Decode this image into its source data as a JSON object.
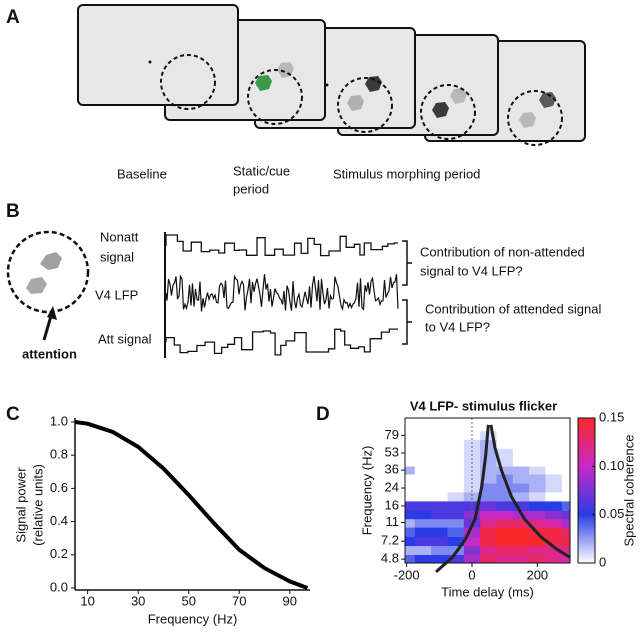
{
  "panel_a": {
    "label": "A",
    "stages": [
      {
        "label": [
          "Baseline"
        ]
      },
      {
        "label": [
          "Static/cue",
          "period"
        ]
      },
      {
        "label": [
          "Stimulus  morphing period"
        ]
      }
    ]
  },
  "panel_b": {
    "label": "B",
    "attention": "attention",
    "signals": [
      [
        "Nonatt",
        "signal"
      ],
      [
        "V4 LFP"
      ],
      [
        "Att signal"
      ]
    ],
    "questions": [
      [
        "Contribution of non-attended",
        "signal to V4 LFP?"
      ],
      [
        "Contribution of attended signal",
        "to V4 LFP?"
      ]
    ]
  },
  "chart_data": [
    {
      "panel_label": "C",
      "type": "line",
      "xlabel": "Frequency (Hz)",
      "ylabel": [
        "Signal power",
        "(relative units)"
      ],
      "x": [
        5,
        10,
        20,
        30,
        40,
        50,
        60,
        70,
        80,
        90,
        97
      ],
      "values": [
        1,
        0.99,
        0.94,
        0.85,
        0.72,
        0.56,
        0.39,
        0.23,
        0.12,
        0.04,
        0
      ],
      "color": "#000000",
      "xlim": [
        5,
        98
      ],
      "ylim": [
        0,
        1
      ],
      "xticks": [
        10,
        30,
        50,
        70,
        90
      ],
      "yticks": [
        {
          "value": 0,
          "label": "0.0"
        },
        0.2,
        0.4,
        0.6,
        0.8,
        {
          "value": 1,
          "label": "1.0"
        }
      ]
    },
    {
      "panel_label": "D",
      "type": "heatmap",
      "title": "V4 LFP- stimulus flicker",
      "xlabel": "Time delay (ms)",
      "ylabel": "Frequency (Hz)",
      "x": [
        -200,
        -150,
        -100,
        -50,
        0,
        50,
        100,
        150,
        200,
        250,
        300
      ],
      "y": [
        4.8,
        5.9,
        7.2,
        8.9,
        11,
        13,
        16,
        20,
        24,
        30,
        36,
        43,
        53,
        65,
        79,
        97
      ],
      "z": [
        [
          0.04,
          0.05,
          0.05,
          0.06,
          0.09,
          0.13,
          0.12,
          0.12,
          0.13,
          0.12,
          0.11
        ],
        [
          0.02,
          0.02,
          0.03,
          0.03,
          0.08,
          0.12,
          0.13,
          0.13,
          0.12,
          0.12,
          0.12
        ],
        [
          0.05,
          0.06,
          0.06,
          0.05,
          0.1,
          0.14,
          0.15,
          0.15,
          0.15,
          0.14,
          0.14
        ],
        [
          0.04,
          0.05,
          0.05,
          0.04,
          0.09,
          0.14,
          0.15,
          0.15,
          0.14,
          0.14,
          0.13
        ],
        [
          0.02,
          0.03,
          0.03,
          0.03,
          0.07,
          0.12,
          0.13,
          0.13,
          0.12,
          0.11,
          0.09
        ],
        [
          0.05,
          0.05,
          0.06,
          0.06,
          0.08,
          0.1,
          0.1,
          0.09,
          0.09,
          0.08,
          0.07
        ],
        [
          0.06,
          0.06,
          0.06,
          0.06,
          0.06,
          0.07,
          0.06,
          0.06,
          0.05,
          0.05,
          0.04
        ],
        [
          0,
          0,
          0,
          0.01,
          0.02,
          0.03,
          0.03,
          0.02,
          0.01,
          0,
          0
        ],
        [
          0,
          0,
          0,
          0,
          0.01,
          0.03,
          0.03,
          0.03,
          0.02,
          0.01,
          0
        ],
        [
          0,
          0,
          0,
          0,
          0.01,
          0.02,
          0.03,
          0.02,
          0.02,
          0.01,
          0
        ],
        [
          0.02,
          0,
          0,
          0,
          0.01,
          0.02,
          0.02,
          0.02,
          0.01,
          0,
          0
        ],
        [
          0,
          0,
          0,
          0,
          0.01,
          0.02,
          0.01,
          0,
          0,
          0,
          0
        ],
        [
          0,
          0,
          0,
          0,
          0.01,
          0.02,
          0.01,
          0,
          0,
          0,
          0
        ],
        [
          0,
          0,
          0,
          0,
          0.01,
          0.02,
          0,
          0,
          0,
          0,
          0
        ],
        [
          0,
          0,
          0,
          0,
          0,
          0.01,
          0,
          0,
          0,
          0,
          0
        ],
        [
          0,
          0,
          0,
          0,
          0,
          0,
          0,
          0,
          0,
          0,
          0
        ]
      ],
      "xlim": [
        -205,
        300
      ],
      "ylim": [
        4.4,
        117
      ],
      "yscale": "log",
      "xticks": [
        -200,
        0,
        200
      ],
      "yticks": [
        4.8,
        7.2,
        11,
        16,
        24,
        36,
        53,
        79
      ],
      "zero_line": true,
      "curves": [
        {
          "x": [
            -110,
            -60,
            -20,
            10,
            30,
            42,
            50
          ],
          "y": [
            3.6,
            5,
            7.5,
            12,
            25,
            50,
            100
          ]
        },
        {
          "x": [
            58,
            70,
            90,
            120,
            160,
            210,
            260,
            300
          ],
          "y": [
            100,
            60,
            36,
            20,
            12,
            8,
            6,
            5
          ]
        }
      ],
      "colorbar": {
        "label": "Spectral coherence",
        "clim": [
          0,
          0.15
        ],
        "ticks": [
          0,
          0.05,
          {
            "value": 0.1,
            "label": "0.10"
          },
          0.15
        ],
        "colors": [
          "#ffffff",
          "#2a3ce6",
          "#c828c8",
          "#fa2828"
        ]
      }
    }
  ]
}
